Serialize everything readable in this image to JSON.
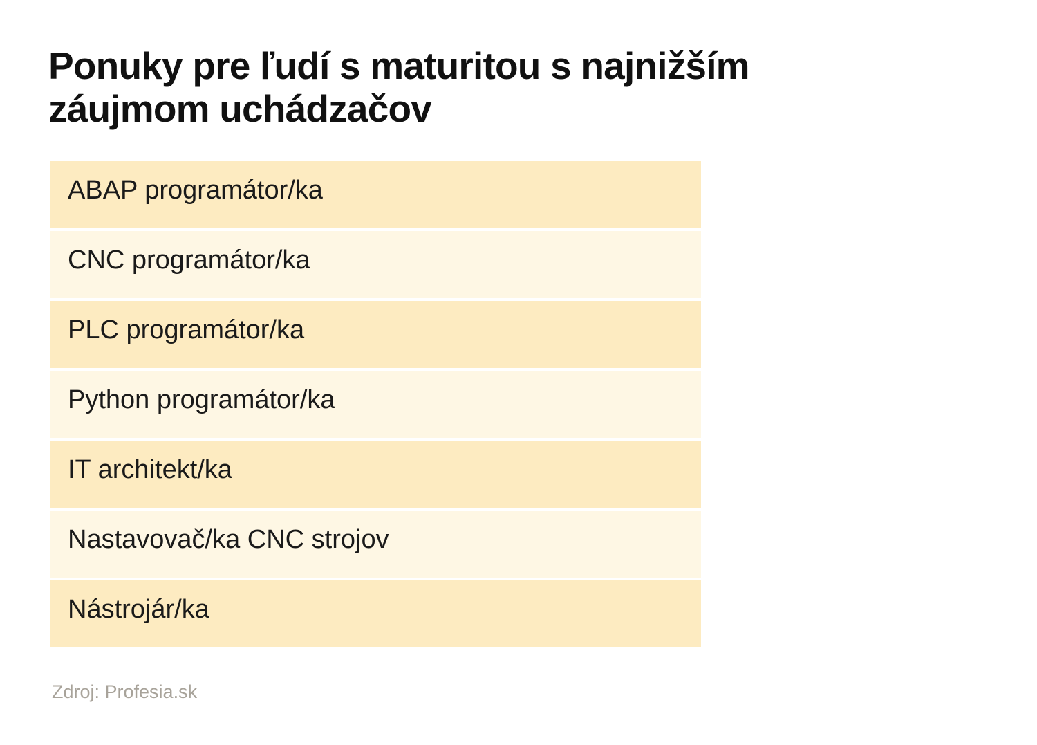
{
  "title": "Ponuky pre ľudí s maturitou s najnižším záujmom uchádzačov",
  "source": "Zdroj: Profesia.sk",
  "colors": {
    "row_dark": "#fdebc1",
    "row_light": "#fef7e4",
    "source_text": "#a8a39a"
  },
  "chart_data": {
    "type": "table",
    "title": "Ponuky pre ľudí s maturitou s najnižším záujmom uchádzačov",
    "rows": [
      "ABAP programátor/ka",
      "CNC programátor/ka",
      "PLC programátor/ka",
      "Python programátor/ka",
      "IT architekt/ka",
      "Nastavovač/ka CNC strojov",
      "Nástrojár/ka"
    ],
    "source": "Zdroj: Profesia.sk"
  }
}
